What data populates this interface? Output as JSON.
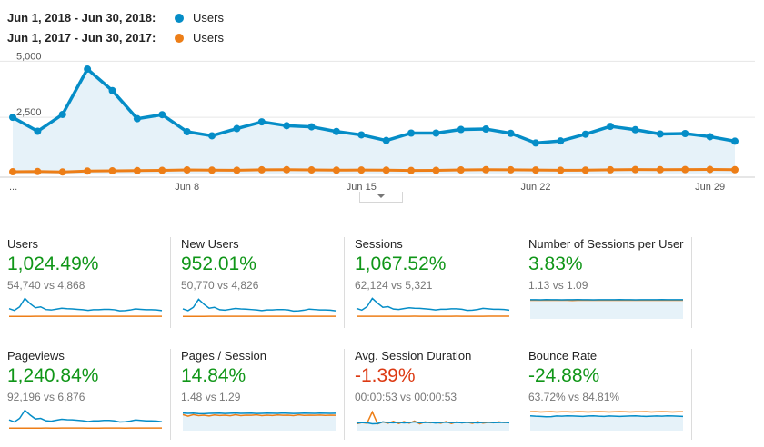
{
  "legend": [
    {
      "range": "Jun 1, 2018 - Jun 30, 2018:",
      "series": "Users",
      "color": "#058dc7"
    },
    {
      "range": "Jun 1, 2017 - Jun 30, 2017:",
      "series": "Users",
      "color": "#ed7e17"
    }
  ],
  "chart_data": {
    "type": "line",
    "x": [
      "Jun 1",
      "Jun 2",
      "Jun 3",
      "Jun 4",
      "Jun 5",
      "Jun 6",
      "Jun 7",
      "Jun 8",
      "Jun 9",
      "Jun 10",
      "Jun 11",
      "Jun 12",
      "Jun 13",
      "Jun 14",
      "Jun 15",
      "Jun 16",
      "Jun 17",
      "Jun 18",
      "Jun 19",
      "Jun 20",
      "Jun 21",
      "Jun 22",
      "Jun 23",
      "Jun 24",
      "Jun 25",
      "Jun 26",
      "Jun 27",
      "Jun 28",
      "Jun 29",
      "Jun 30"
    ],
    "x_tick_labels": [
      "...",
      "Jun 8",
      "Jun 15",
      "Jun 22",
      "Jun 29"
    ],
    "y_ticks": [
      "5,000",
      "2,500"
    ],
    "ylim": [
      0,
      5500
    ],
    "series": [
      {
        "name": "Users",
        "color": "#058dc7",
        "values": [
          2500,
          1880,
          2630,
          4650,
          3690,
          2440,
          2620,
          1860,
          1680,
          2000,
          2300,
          2130,
          2080,
          1870,
          1720,
          1470,
          1800,
          1800,
          1960,
          1980,
          1790,
          1360,
          1450,
          1750,
          2100,
          1950,
          1760,
          1780,
          1640,
          1440
        ]
      },
      {
        "name": "Users",
        "color": "#ed7e17",
        "values": [
          80,
          90,
          70,
          110,
          120,
          130,
          140,
          160,
          150,
          145,
          165,
          170,
          160,
          150,
          155,
          150,
          135,
          140,
          160,
          170,
          165,
          155,
          145,
          150,
          165,
          175,
          170,
          175,
          180,
          170
        ]
      }
    ]
  },
  "cards": [
    {
      "title": "Users",
      "pct": "1,024.49%",
      "pct_color": "#109618",
      "cmp": "54,740 vs 4,868",
      "spark_kind": "line",
      "cur": [
        1900,
        1500,
        2300,
        4200,
        3000,
        2100,
        2300,
        1700,
        1600,
        1800,
        2000,
        1900,
        1850,
        1750,
        1650,
        1500,
        1650,
        1650,
        1750,
        1750,
        1650,
        1400,
        1450,
        1600,
        1850,
        1750,
        1650,
        1650,
        1600,
        1450
      ],
      "prev": [
        150,
        155,
        150,
        160,
        165,
        170,
        170,
        175,
        170,
        170,
        175,
        178,
        175,
        172,
        172,
        170,
        168,
        170,
        175,
        178,
        176,
        172,
        170,
        172,
        176,
        180,
        178,
        180,
        182,
        180
      ],
      "spark_max": 4500
    },
    {
      "title": "New Users",
      "pct": "952.01%",
      "pct_color": "#109618",
      "cmp": "50,770 vs 4,826",
      "spark_kind": "line",
      "cur": [
        1850,
        1450,
        2200,
        4000,
        2900,
        2000,
        2200,
        1650,
        1550,
        1750,
        1950,
        1850,
        1800,
        1700,
        1600,
        1450,
        1600,
        1600,
        1700,
        1700,
        1600,
        1350,
        1400,
        1550,
        1800,
        1700,
        1600,
        1600,
        1550,
        1400
      ],
      "prev": [
        150,
        155,
        150,
        160,
        165,
        170,
        170,
        175,
        170,
        170,
        175,
        178,
        175,
        172,
        172,
        170,
        168,
        170,
        175,
        178,
        176,
        172,
        170,
        172,
        176,
        180,
        178,
        180,
        182,
        180
      ],
      "spark_max": 4500
    },
    {
      "title": "Sessions",
      "pct": "1,067.52%",
      "pct_color": "#109618",
      "cmp": "62,124 vs 5,321",
      "spark_kind": "line",
      "cur": [
        2000,
        1600,
        2400,
        4300,
        3200,
        2250,
        2400,
        1850,
        1750,
        1950,
        2150,
        2050,
        2000,
        1900,
        1800,
        1650,
        1800,
        1800,
        1900,
        1900,
        1800,
        1550,
        1600,
        1750,
        2000,
        1900,
        1800,
        1800,
        1750,
        1600
      ],
      "prev": [
        170,
        175,
        170,
        180,
        185,
        190,
        190,
        195,
        190,
        190,
        195,
        198,
        195,
        192,
        192,
        190,
        188,
        190,
        195,
        198,
        196,
        192,
        190,
        192,
        196,
        200,
        198,
        200,
        202,
        200
      ],
      "spark_max": 4600
    },
    {
      "title": "Number of Sessions per User",
      "pct": "3.83%",
      "pct_color": "#109618",
      "cmp": "1.13 vs 1.09",
      "spark_kind": "area",
      "cur": [
        1.13,
        1.13,
        1.12,
        1.14,
        1.13,
        1.13,
        1.12,
        1.13,
        1.13,
        1.14,
        1.13,
        1.13,
        1.12,
        1.13,
        1.13,
        1.13,
        1.13,
        1.14,
        1.13,
        1.13,
        1.12,
        1.13,
        1.13,
        1.13,
        1.13,
        1.14,
        1.13,
        1.13,
        1.13,
        1.13
      ],
      "prev": [
        1.09,
        1.09,
        1.1,
        1.09,
        1.09,
        1.1,
        1.09,
        1.09,
        1.08,
        1.09,
        1.09,
        1.09,
        1.1,
        1.09,
        1.09,
        1.09,
        1.09,
        1.09,
        1.1,
        1.09,
        1.09,
        1.09,
        1.1,
        1.09,
        1.09,
        1.09,
        1.09,
        1.1,
        1.09,
        1.09
      ],
      "spark_max": 1.3
    },
    {
      "title": "Pageviews",
      "pct": "1,240.84%",
      "pct_color": "#109618",
      "cmp": "92,196 vs 6,876",
      "spark_kind": "line",
      "cur": [
        3000,
        2300,
        3500,
        6200,
        4600,
        3300,
        3500,
        2700,
        2550,
        2900,
        3200,
        3050,
        3000,
        2850,
        2700,
        2450,
        2650,
        2650,
        2800,
        2800,
        2650,
        2300,
        2350,
        2600,
        2950,
        2800,
        2650,
        2650,
        2600,
        2350
      ],
      "prev": [
        220,
        225,
        220,
        235,
        240,
        245,
        245,
        250,
        245,
        245,
        250,
        255,
        250,
        248,
        248,
        245,
        242,
        245,
        250,
        255,
        252,
        248,
        245,
        248,
        252,
        258,
        255,
        258,
        260,
        258
      ],
      "spark_max": 6700
    },
    {
      "title": "Pages / Session",
      "pct": "14.84%",
      "pct_color": "#109618",
      "cmp": "1.48 vs 1.29",
      "spark_kind": "area",
      "cur": [
        1.5,
        1.47,
        1.49,
        1.45,
        1.44,
        1.47,
        1.48,
        1.49,
        1.46,
        1.48,
        1.5,
        1.47,
        1.48,
        1.49,
        1.46,
        1.47,
        1.49,
        1.48,
        1.47,
        1.5,
        1.48,
        1.46,
        1.47,
        1.49,
        1.48,
        1.47,
        1.49,
        1.48,
        1.47,
        1.48
      ],
      "prev": [
        1.35,
        1.2,
        1.35,
        1.25,
        1.3,
        1.22,
        1.32,
        1.26,
        1.3,
        1.24,
        1.34,
        1.25,
        1.3,
        1.28,
        1.33,
        1.25,
        1.3,
        1.26,
        1.32,
        1.28,
        1.3,
        1.25,
        1.33,
        1.27,
        1.3,
        1.29,
        1.31,
        1.27,
        1.3,
        1.29
      ],
      "spark_max": 1.9
    },
    {
      "title": "Avg. Session Duration",
      "pct": "-1.39%",
      "pct_color": "#dc3912",
      "cmp": "00:00:53 vs 00:00:53",
      "spark_kind": "area",
      "cur": [
        45,
        50,
        48,
        40,
        42,
        55,
        50,
        48,
        52,
        47,
        50,
        55,
        48,
        50,
        52,
        46,
        50,
        53,
        49,
        51,
        48,
        52,
        50,
        47,
        51,
        53,
        49,
        50,
        52,
        48
      ],
      "prev": [
        40,
        50,
        45,
        135,
        40,
        55,
        45,
        60,
        42,
        58,
        45,
        62,
        40,
        55,
        48,
        52,
        45,
        58,
        42,
        55,
        47,
        53,
        44,
        57,
        46,
        52,
        48,
        55,
        50,
        53
      ],
      "spark_max": 160
    },
    {
      "title": "Bounce Rate",
      "pct": "-24.88%",
      "pct_color": "#109618",
      "cmp": "63.72% vs 84.81%",
      "spark_kind": "area",
      "cur": [
        65,
        63,
        62,
        60,
        61,
        64,
        63,
        65,
        64,
        63,
        62,
        64,
        65,
        63,
        62,
        64,
        63,
        62,
        63,
        64,
        65,
        63,
        62,
        63,
        64,
        63,
        65,
        64,
        63,
        62
      ],
      "prev": [
        85,
        86,
        84,
        85,
        86,
        84,
        85,
        85,
        84,
        86,
        85,
        84,
        85,
        86,
        85,
        84,
        85,
        86,
        85,
        84,
        85,
        85,
        86,
        84,
        85,
        86,
        85,
        84,
        85,
        85
      ],
      "spark_max": 100
    }
  ]
}
